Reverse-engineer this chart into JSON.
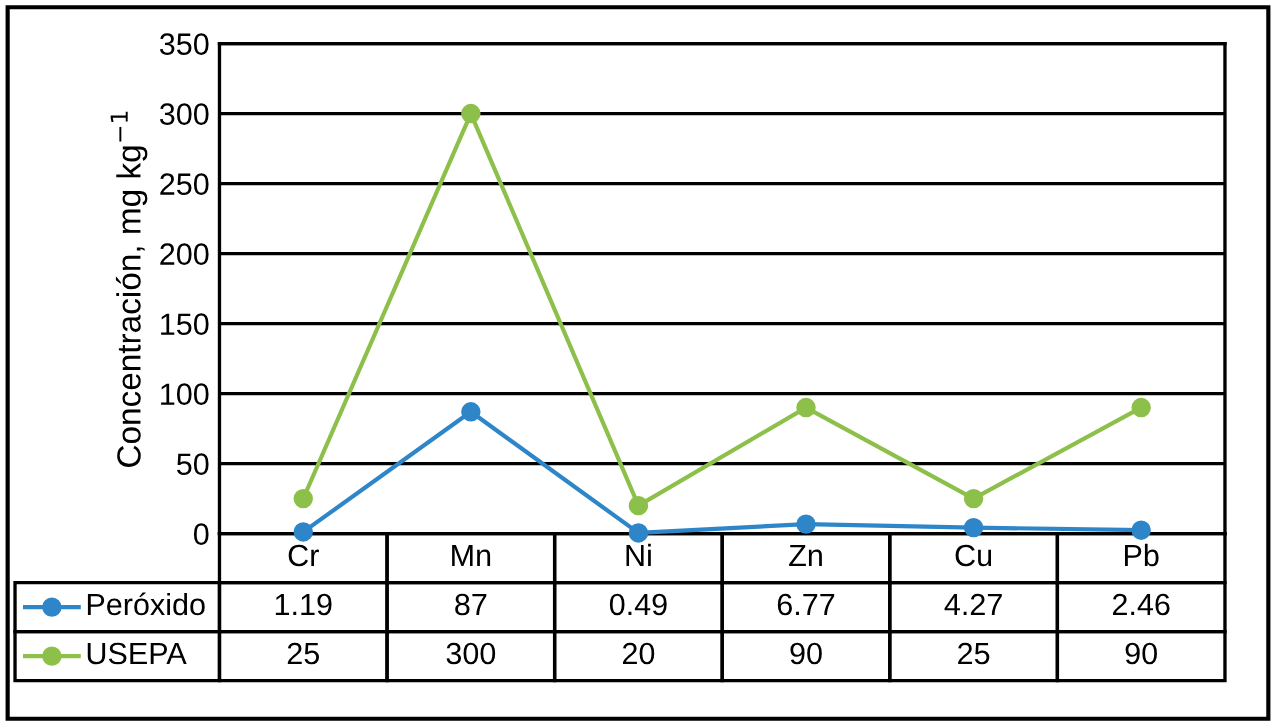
{
  "chart_data": {
    "type": "line",
    "ylabel": "Concentración, mg kg$^{−1}$",
    "categories": [
      "Cr",
      "Mn",
      "Ni",
      "Zn",
      "Cu",
      "Pb"
    ],
    "series": [
      {
        "name": "Peróxido",
        "color": "#2e86c8",
        "values": [
          1.19,
          87,
          0.49,
          6.77,
          4.27,
          2.46
        ]
      },
      {
        "name": "USEPA",
        "color": "#8dc04a",
        "values": [
          25,
          300,
          20,
          90,
          25,
          90
        ]
      }
    ],
    "ylim": [
      0,
      350
    ],
    "yticks": [
      0,
      50,
      100,
      150,
      200,
      250,
      300,
      350
    ],
    "grid": "y",
    "marker": "circle",
    "line_style": "solid",
    "data_labels": true,
    "legend": "bottom left"
  }
}
